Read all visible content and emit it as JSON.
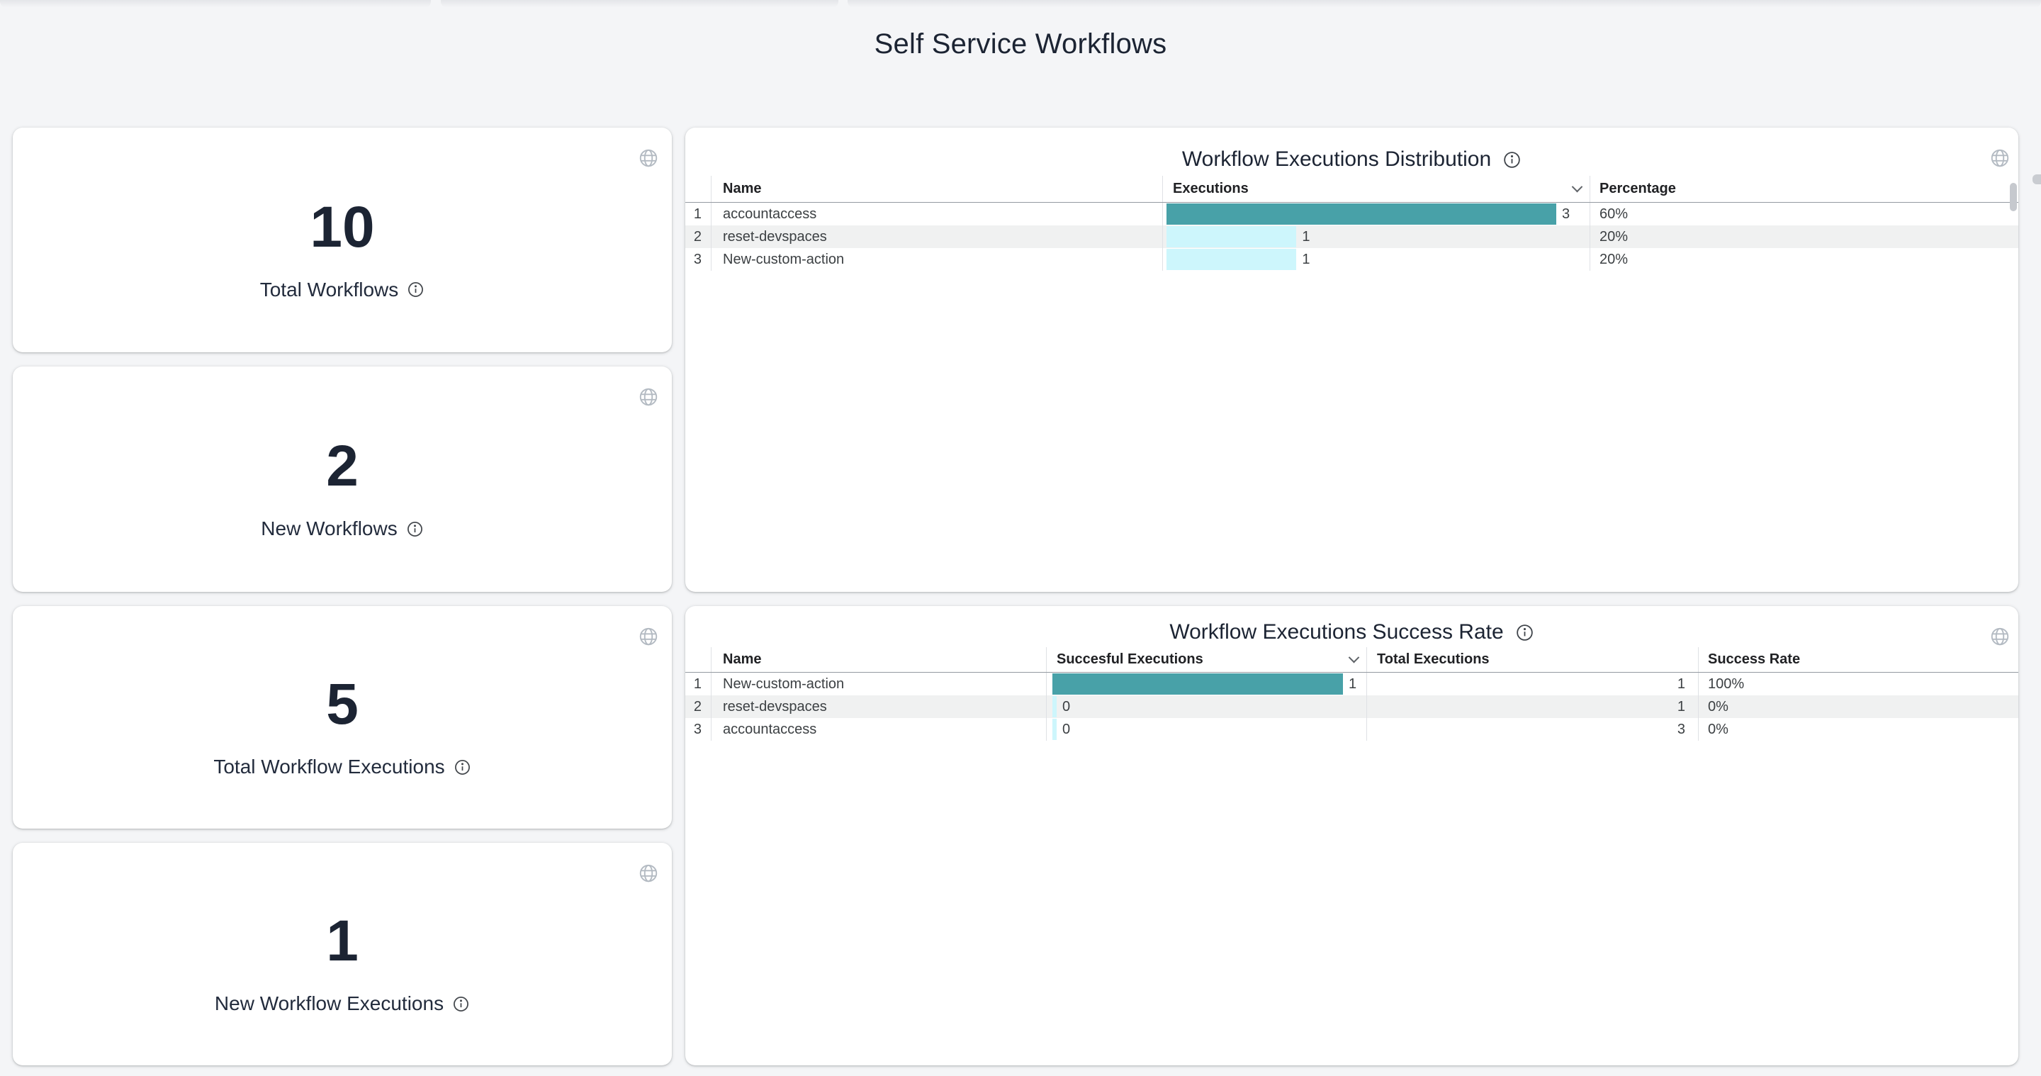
{
  "page": {
    "title": "Self Service Workflows"
  },
  "stats": [
    {
      "value": "10",
      "label": "Total Workflows"
    },
    {
      "value": "2",
      "label": "New Workflows"
    },
    {
      "value": "5",
      "label": "Total Workflow Executions"
    },
    {
      "value": "1",
      "label": "New Workflow Executions"
    }
  ],
  "tables": {
    "distribution": {
      "title": "Workflow Executions Distribution",
      "headers": {
        "name": "Name",
        "executions": "Executions",
        "percentage": "Percentage"
      },
      "rows": [
        {
          "index": "1",
          "name": "accountaccess",
          "executions": "3",
          "percentage": "60%"
        },
        {
          "index": "2",
          "name": "reset-devspaces",
          "executions": "1",
          "percentage": "20%"
        },
        {
          "index": "3",
          "name": "New-custom-action",
          "executions": "1",
          "percentage": "20%"
        }
      ]
    },
    "success": {
      "title": "Workflow Executions Success Rate",
      "headers": {
        "name": "Name",
        "successful": "Succesful Executions",
        "total": "Total Executions",
        "rate": "Success Rate"
      },
      "rows": [
        {
          "index": "1",
          "name": "New-custom-action",
          "successful": "1",
          "total": "1",
          "rate": "100%"
        },
        {
          "index": "2",
          "name": "reset-devspaces",
          "successful": "0",
          "total": "1",
          "rate": "0%"
        },
        {
          "index": "3",
          "name": "accountaccess",
          "successful": "0",
          "total": "3",
          "rate": "0%"
        }
      ]
    }
  },
  "chart_data": [
    {
      "type": "table",
      "title": "Workflow Executions Distribution",
      "columns": [
        "Name",
        "Executions",
        "Percentage"
      ],
      "rows": [
        [
          "accountaccess",
          3,
          "60%"
        ],
        [
          "reset-devspaces",
          1,
          "20%"
        ],
        [
          "New-custom-action",
          1,
          "20%"
        ]
      ],
      "bar_column": "Executions",
      "bar_max": 3,
      "sorted_by": "Executions descending",
      "bar_colors": {
        "top_row": "#48a1a8",
        "other_rows": "#cdf6fc"
      }
    },
    {
      "type": "table",
      "title": "Workflow Executions Success Rate",
      "columns": [
        "Name",
        "Succesful Executions",
        "Total Executions",
        "Success Rate"
      ],
      "rows": [
        [
          "New-custom-action",
          1,
          1,
          "100%"
        ],
        [
          "reset-devspaces",
          0,
          1,
          "0%"
        ],
        [
          "accountaccess",
          0,
          3,
          "0%"
        ]
      ],
      "bar_column": "Succesful Executions",
      "bar_max": 1,
      "sorted_by": "Succesful Executions descending",
      "bar_colors": {
        "top_row": "#48a1a8",
        "other_rows": "#cdf6fc"
      }
    }
  ],
  "colors": {
    "accent_teal": "#48a1a8",
    "accent_cyan": "#cdf6fc",
    "row_stripe": "#f0f1f1",
    "heading_text": "#1c2433",
    "cell_text": "#3c4043",
    "page_background": "#f4f5f7"
  }
}
